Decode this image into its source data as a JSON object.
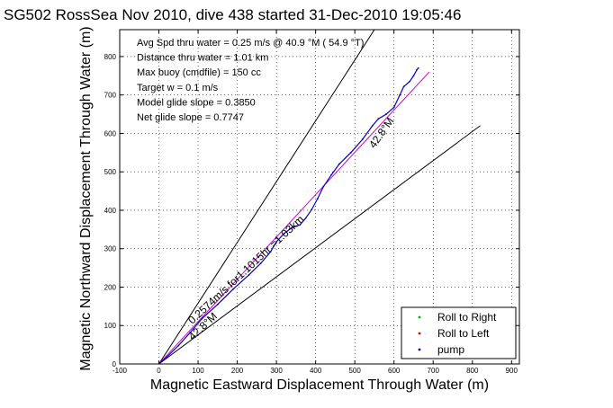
{
  "chart_data": {
    "type": "line",
    "title": "SG502 RossSea Nov 2010, dive 438 started 31-Dec-2010 19:05:46",
    "xlabel": "Magnetic Eastward Displacement Through Water (m)",
    "ylabel": "Magnetic Northward Displacement Through Water (m)",
    "xlim": [
      -100,
      920
    ],
    "ylim": [
      0,
      870
    ],
    "xticks": [
      -100,
      0,
      100,
      200,
      300,
      400,
      500,
      600,
      700,
      800,
      900
    ],
    "yticks": [
      0,
      100,
      200,
      300,
      400,
      500,
      600,
      700,
      800
    ],
    "grid": true,
    "info_lines": [
      "Avg Spd thru water =  0.25 m/s @  40.9   °M ( 54.9 °T)",
      "Distance thru water =  1.01 km",
      "Max buoy (cmdfile) = 150 cc",
      "Target w = 0.1 m/s",
      "Model glide slope = 0.3850",
      "Net glide slope = 0.7747"
    ],
    "annotations": [
      "0.2574m/s for1.1015hr =1.03km",
      "42.8°M",
      "42.8°M"
    ],
    "lines": [
      {
        "kind": "envelope",
        "color": "#000000",
        "points": [
          [
            0,
            0
          ],
          [
            550,
            870
          ]
        ]
      },
      {
        "kind": "envelope",
        "color": "#000000",
        "points": [
          [
            0,
            0
          ],
          [
            820,
            620
          ]
        ]
      },
      {
        "kind": "net-track",
        "color": "#d000d0",
        "points": [
          [
            0,
            0
          ],
          [
            690,
            760
          ]
        ]
      }
    ],
    "series": [
      {
        "name": "pump",
        "color": "#0000cc",
        "x": [
          0,
          20,
          50,
          80,
          110,
          150,
          190,
          230,
          260,
          285,
          300,
          320,
          340,
          360,
          375,
          390,
          405,
          420,
          440,
          460,
          490,
          520,
          545,
          560,
          580,
          600,
          615,
          625,
          640,
          650,
          658,
          662
        ],
        "y": [
          0,
          18,
          48,
          82,
          118,
          155,
          195,
          232,
          262,
          292,
          318,
          340,
          355,
          362,
          380,
          402,
          430,
          462,
          492,
          520,
          550,
          585,
          620,
          638,
          650,
          668,
          700,
          722,
          735,
          750,
          765,
          770
        ]
      }
    ],
    "legend": {
      "placement": "bottom-right",
      "items": [
        {
          "label": "Roll to Right",
          "color": "#00b000"
        },
        {
          "label": "Roll to Left",
          "color": "#e00000"
        },
        {
          "label": "pump",
          "color": "#0000cc"
        }
      ]
    }
  }
}
